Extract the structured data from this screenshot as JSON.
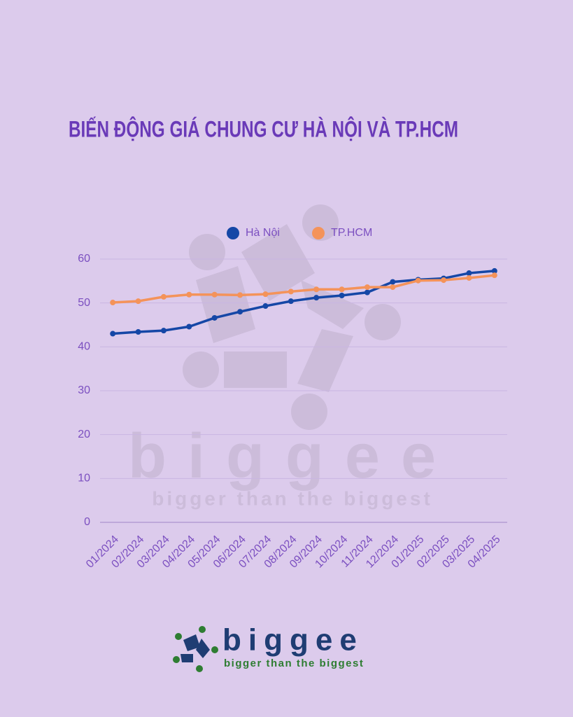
{
  "chart_data": {
    "type": "line",
    "title": "BIẾN ĐỘNG GIÁ CHUNG CƯ HÀ NỘI VÀ TP.HCM",
    "categories": [
      "01/2024",
      "02/2024",
      "03/2024",
      "04/2024",
      "05/2024",
      "06/2024",
      "07/2024",
      "08/2024",
      "09/2024",
      "10/2024",
      "11/2024",
      "12/2024",
      "01/2025",
      "02/2025",
      "03/2025",
      "04/2025"
    ],
    "series": [
      {
        "name": "Hà Nội",
        "color": "#1547a6",
        "values": [
          43.0,
          43.4,
          43.7,
          44.6,
          46.6,
          48.0,
          49.3,
          50.4,
          51.2,
          51.7,
          52.4,
          54.8,
          55.3,
          55.6,
          56.8,
          57.3
        ]
      },
      {
        "name": "TP.HCM",
        "color": "#f4935a",
        "values": [
          50.1,
          50.4,
          51.4,
          51.9,
          51.9,
          51.8,
          52.0,
          52.6,
          53.1,
          53.1,
          53.6,
          53.6,
          55.1,
          55.2,
          55.7,
          56.3
        ]
      }
    ],
    "ylim": [
      0,
      60
    ],
    "yticks": [
      0,
      10,
      20,
      30,
      40,
      50,
      60
    ],
    "grid": true,
    "legend": "top"
  },
  "logo": {
    "name": "biggee",
    "tagline": "bigger than the biggest"
  }
}
